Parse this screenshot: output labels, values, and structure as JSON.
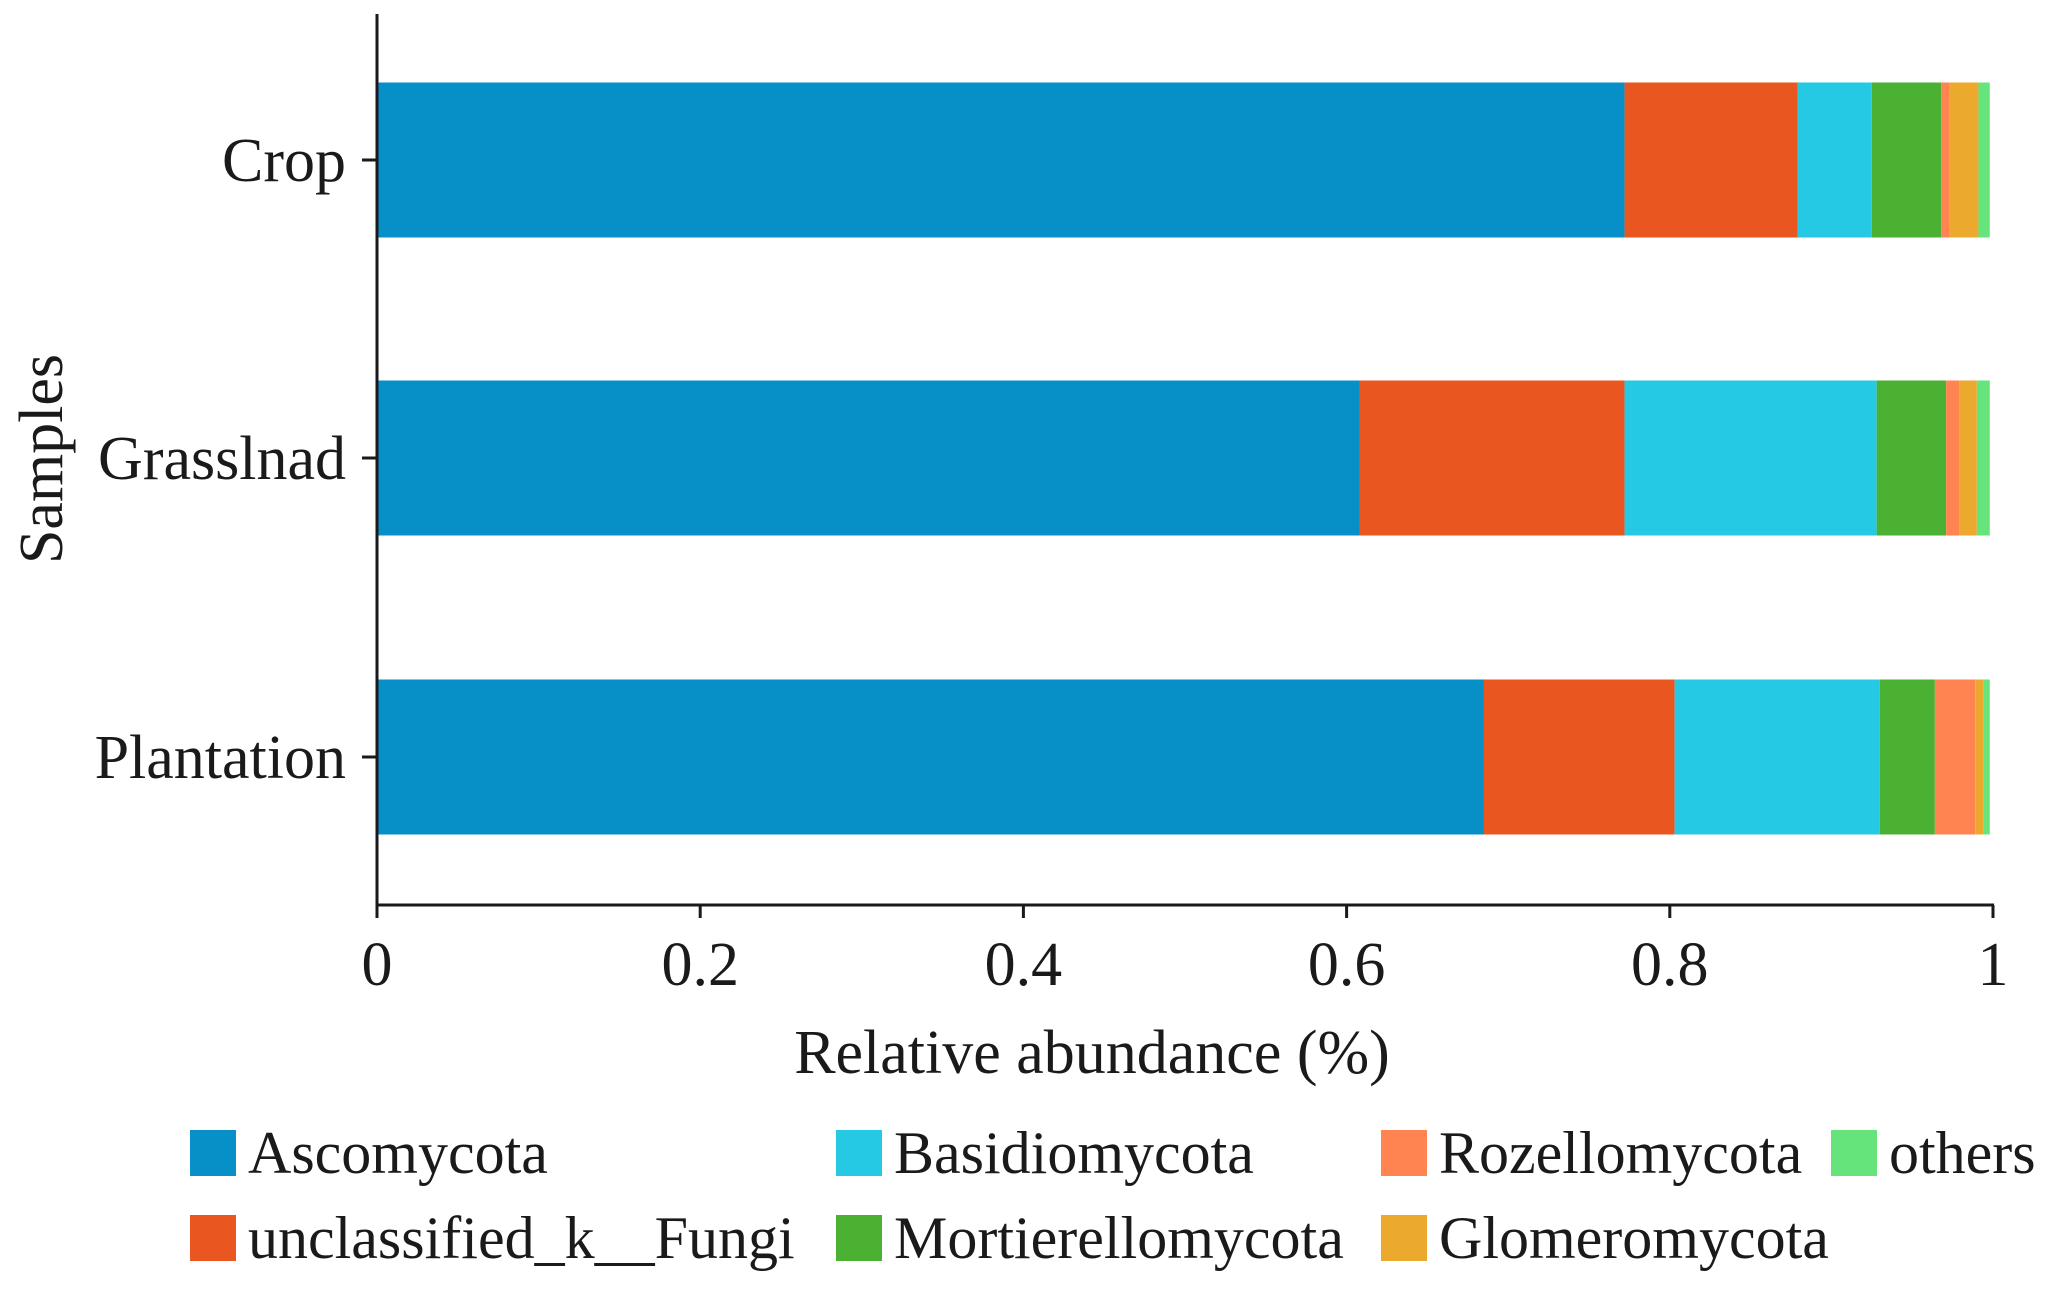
{
  "chart_data": {
    "type": "bar",
    "orientation": "horizontal",
    "stacked": true,
    "title": "",
    "xlabel": "Relative abundance (%)",
    "ylabel": "Samples",
    "xlim": [
      0,
      1
    ],
    "xticks": [
      "0",
      "0.2",
      "0.4",
      "0.6",
      "0.8",
      "1"
    ],
    "xtick_values": [
      0,
      0.2,
      0.4,
      0.6,
      0.8,
      1
    ],
    "categories": [
      "Crop",
      "Grasslnad",
      "Plantation"
    ],
    "grid": false,
    "legend_position": "bottom",
    "series": [
      {
        "name": "Ascomycota",
        "color": "#078FC8",
        "values": [
          0.772,
          0.608,
          0.685
        ]
      },
      {
        "name": "unclassified_k__Fungi",
        "color": "#EA561F",
        "values": [
          0.107,
          0.164,
          0.118
        ]
      },
      {
        "name": "Basidiomycota",
        "color": "#26C9E3",
        "values": [
          0.046,
          0.156,
          0.127
        ]
      },
      {
        "name": "Mortierellomycota",
        "color": "#4BB132",
        "values": [
          0.043,
          0.043,
          0.034
        ]
      },
      {
        "name": "Rozellomycota",
        "color": "#FF8452",
        "values": [
          0.005,
          0.008,
          0.025
        ]
      },
      {
        "name": "Glomeromycota",
        "color": "#EBAA2E",
        "values": [
          0.018,
          0.011,
          0.005
        ]
      },
      {
        "name": "others",
        "color": "#66E47C",
        "values": [
          0.007,
          0.008,
          0.004
        ]
      }
    ],
    "legend_order": [
      "Ascomycota",
      "Basidiomycota",
      "Rozellomycota",
      "others",
      "unclassified_k__Fungi",
      "Mortierellomycota",
      "Glomeromycota"
    ]
  }
}
